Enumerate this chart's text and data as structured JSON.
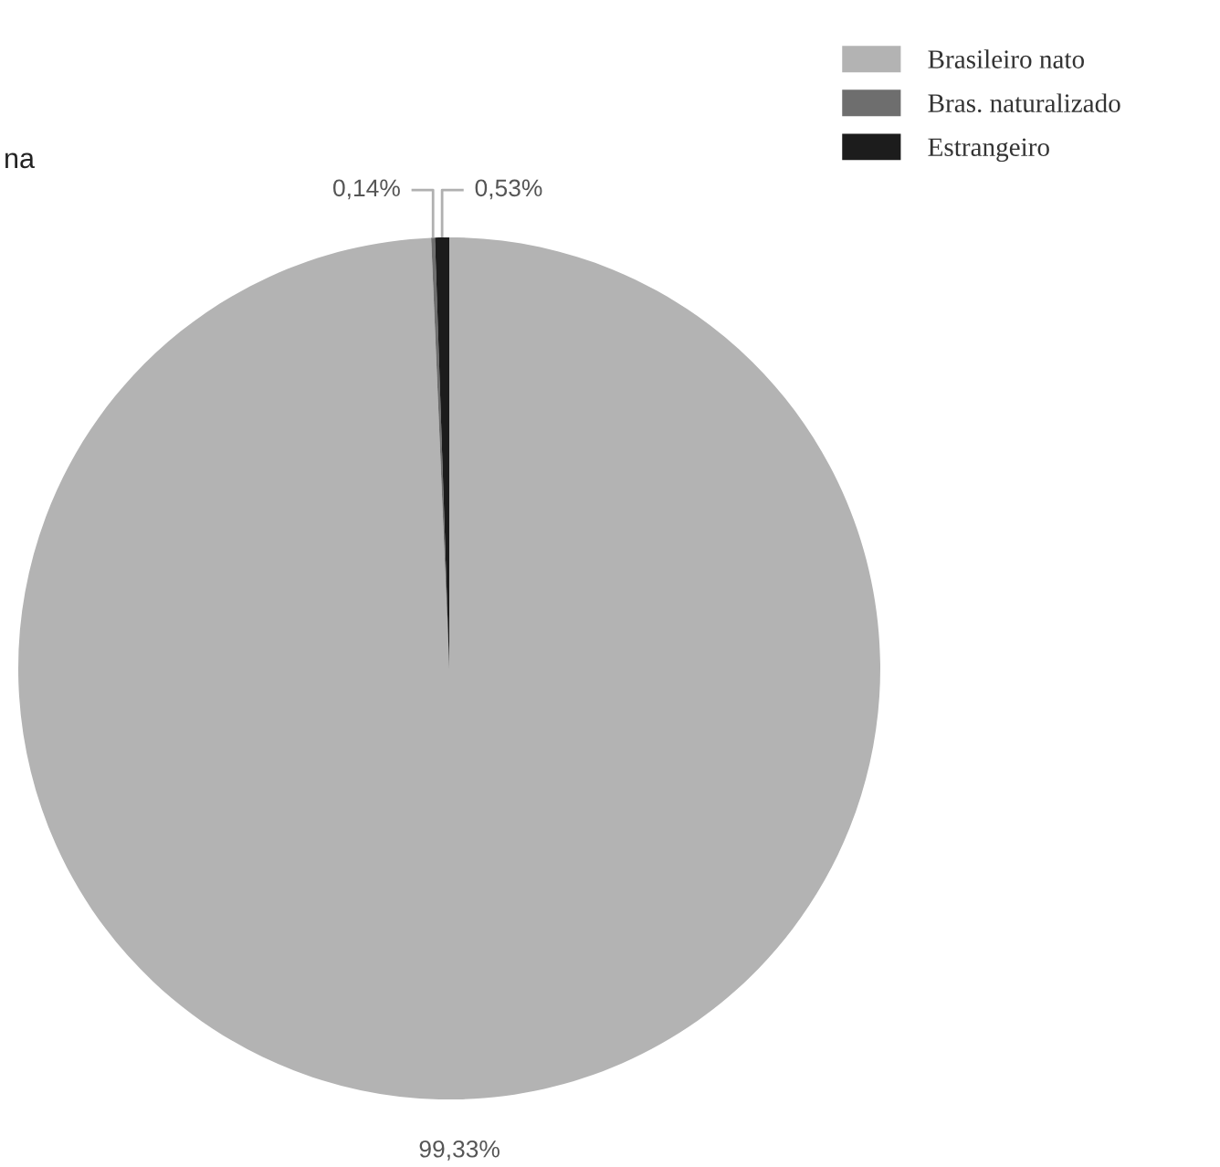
{
  "chart_data": {
    "type": "pie",
    "categories": [
      "Brasileiro nato",
      "Bras. naturalizado",
      "Estrangeiro"
    ],
    "values": [
      99.33,
      0.14,
      0.53
    ],
    "colors": [
      "#b3b3b3",
      "#6e6e6e",
      "#1c1c1c"
    ],
    "value_labels": [
      "99,33%",
      "0,14%",
      "0,53%"
    ],
    "legend": "top right",
    "annotations": [
      "na"
    ]
  }
}
